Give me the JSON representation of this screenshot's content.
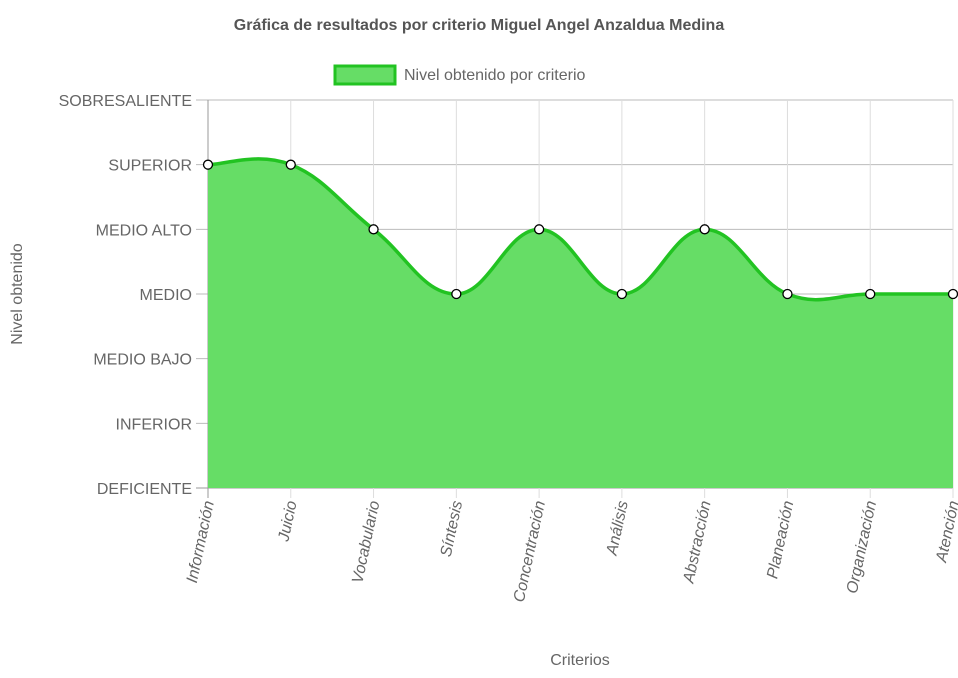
{
  "chart_data": {
    "type": "area",
    "title": "Gráfica de resultados por criterio Miguel Angel Anzaldua Medina",
    "xlabel": "Criterios",
    "ylabel": "Nivel obtenido",
    "categories": [
      "Información",
      "Juicio",
      "Vocabulario",
      "Síntesis",
      "Concentración",
      "Análisis",
      "Abstracción",
      "Planeación",
      "Organización",
      "Atención"
    ],
    "y_levels": [
      "DEFICIENTE",
      "INFERIOR",
      "MEDIO BAJO",
      "MEDIO",
      "MEDIO ALTO",
      "SUPERIOR",
      "SOBRESALIENTE"
    ],
    "ylim": [
      0,
      6
    ],
    "grid": true,
    "legend_position": "top",
    "series": [
      {
        "name": "Nivel obtenido por criterio",
        "values": [
          5,
          5,
          4,
          3,
          4,
          3,
          4,
          3,
          3,
          3
        ],
        "color": "#22c322",
        "fill": "#66dd66"
      }
    ]
  }
}
